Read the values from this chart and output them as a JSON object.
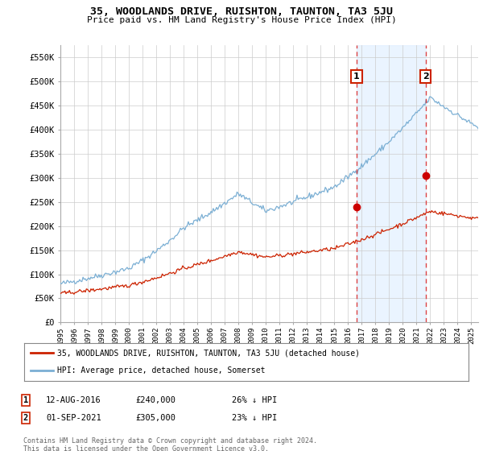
{
  "title": "35, WOODLANDS DRIVE, RUISHTON, TAUNTON, TA3 5JU",
  "subtitle": "Price paid vs. HM Land Registry's House Price Index (HPI)",
  "legend_line1": "35, WOODLANDS DRIVE, RUISHTON, TAUNTON, TA3 5JU (detached house)",
  "legend_line2": "HPI: Average price, detached house, Somerset",
  "annotation1_label": "1",
  "annotation1_date": "12-AUG-2016",
  "annotation1_price": "£240,000",
  "annotation1_hpi": "26% ↓ HPI",
  "annotation2_label": "2",
  "annotation2_date": "01-SEP-2021",
  "annotation2_price": "£305,000",
  "annotation2_hpi": "23% ↓ HPI",
  "footnote1": "Contains HM Land Registry data © Crown copyright and database right 2024.",
  "footnote2": "This data is licensed under the Open Government Licence v3.0.",
  "hpi_color": "#7bafd4",
  "price_color": "#cc2200",
  "marker_color": "#cc0000",
  "vline_color": "#dd4444",
  "bg_shade_color": "#ddeeff",
  "ylim": [
    0,
    575000
  ],
  "yticks": [
    0,
    50000,
    100000,
    150000,
    200000,
    250000,
    300000,
    350000,
    400000,
    450000,
    500000,
    550000
  ],
  "point1_x": 2016.62,
  "point1_y": 240000,
  "point2_x": 2021.67,
  "point2_y": 305000,
  "xmin": 1995,
  "xmax": 2025.5
}
